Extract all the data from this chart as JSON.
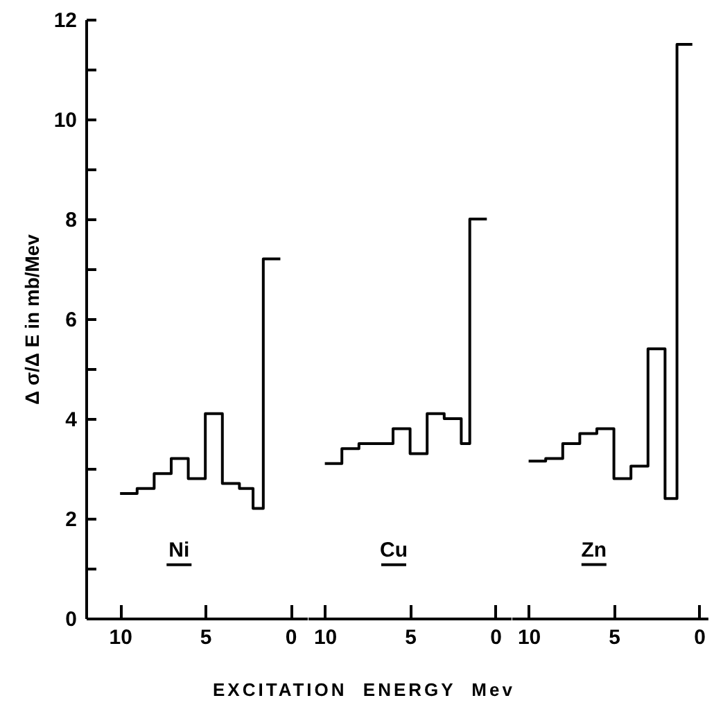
{
  "chart_data": [
    {
      "type": "step",
      "ylabel": "Δ σ/Δ E  in  mb/Mev",
      "xlabel": "EXCITATION  ENERGY  Mev",
      "annotations": [
        "Ni"
      ],
      "x": [
        10,
        9,
        8,
        7,
        6,
        5,
        4,
        3,
        2.2,
        1.6,
        0.6
      ],
      "values": [
        2.5,
        2.6,
        2.9,
        3.2,
        2.8,
        4.1,
        2.7,
        2.6,
        2.2,
        7.2,
        7.2
      ],
      "color": "#000000",
      "xlim": [
        12,
        -1
      ],
      "xticks": [
        10,
        5,
        0
      ],
      "ylim": [
        0,
        12
      ],
      "yticks": [
        0,
        {
          "value": 1,
          "label": null
        },
        2,
        {
          "value": 3,
          "label": null
        },
        4,
        {
          "value": 5,
          "label": null
        },
        6,
        {
          "value": 7,
          "label": null
        },
        8,
        {
          "value": 9,
          "label": null
        },
        10,
        {
          "value": 11,
          "label": null
        },
        12
      ]
    },
    {
      "type": "step",
      "annotations": [
        "Cu"
      ],
      "x": [
        10,
        9,
        8,
        6,
        5,
        4,
        3,
        2,
        1.5,
        0.5
      ],
      "values": [
        3.1,
        3.4,
        3.5,
        3.8,
        3.3,
        4.1,
        4.0,
        3.5,
        8.0,
        8.0
      ],
      "color": "#000000",
      "xlim": [
        11,
        -1
      ],
      "xticks": [
        10,
        5,
        0
      ],
      "ylim": [
        0,
        12
      ],
      "tick_labels": "x"
    },
    {
      "type": "step",
      "annotations": [
        "Zn"
      ],
      "x": [
        10,
        9,
        8,
        7,
        6,
        5,
        4,
        3,
        2,
        1.3,
        0.4
      ],
      "values": [
        3.15,
        3.2,
        3.5,
        3.7,
        3.8,
        2.8,
        3.05,
        5.4,
        2.4,
        11.5,
        11.5
      ],
      "color": "#000000",
      "xlim": [
        11,
        -0.5
      ],
      "xticks": [
        10,
        5,
        0
      ],
      "ylim": [
        0,
        12
      ],
      "tick_labels": "x"
    }
  ]
}
